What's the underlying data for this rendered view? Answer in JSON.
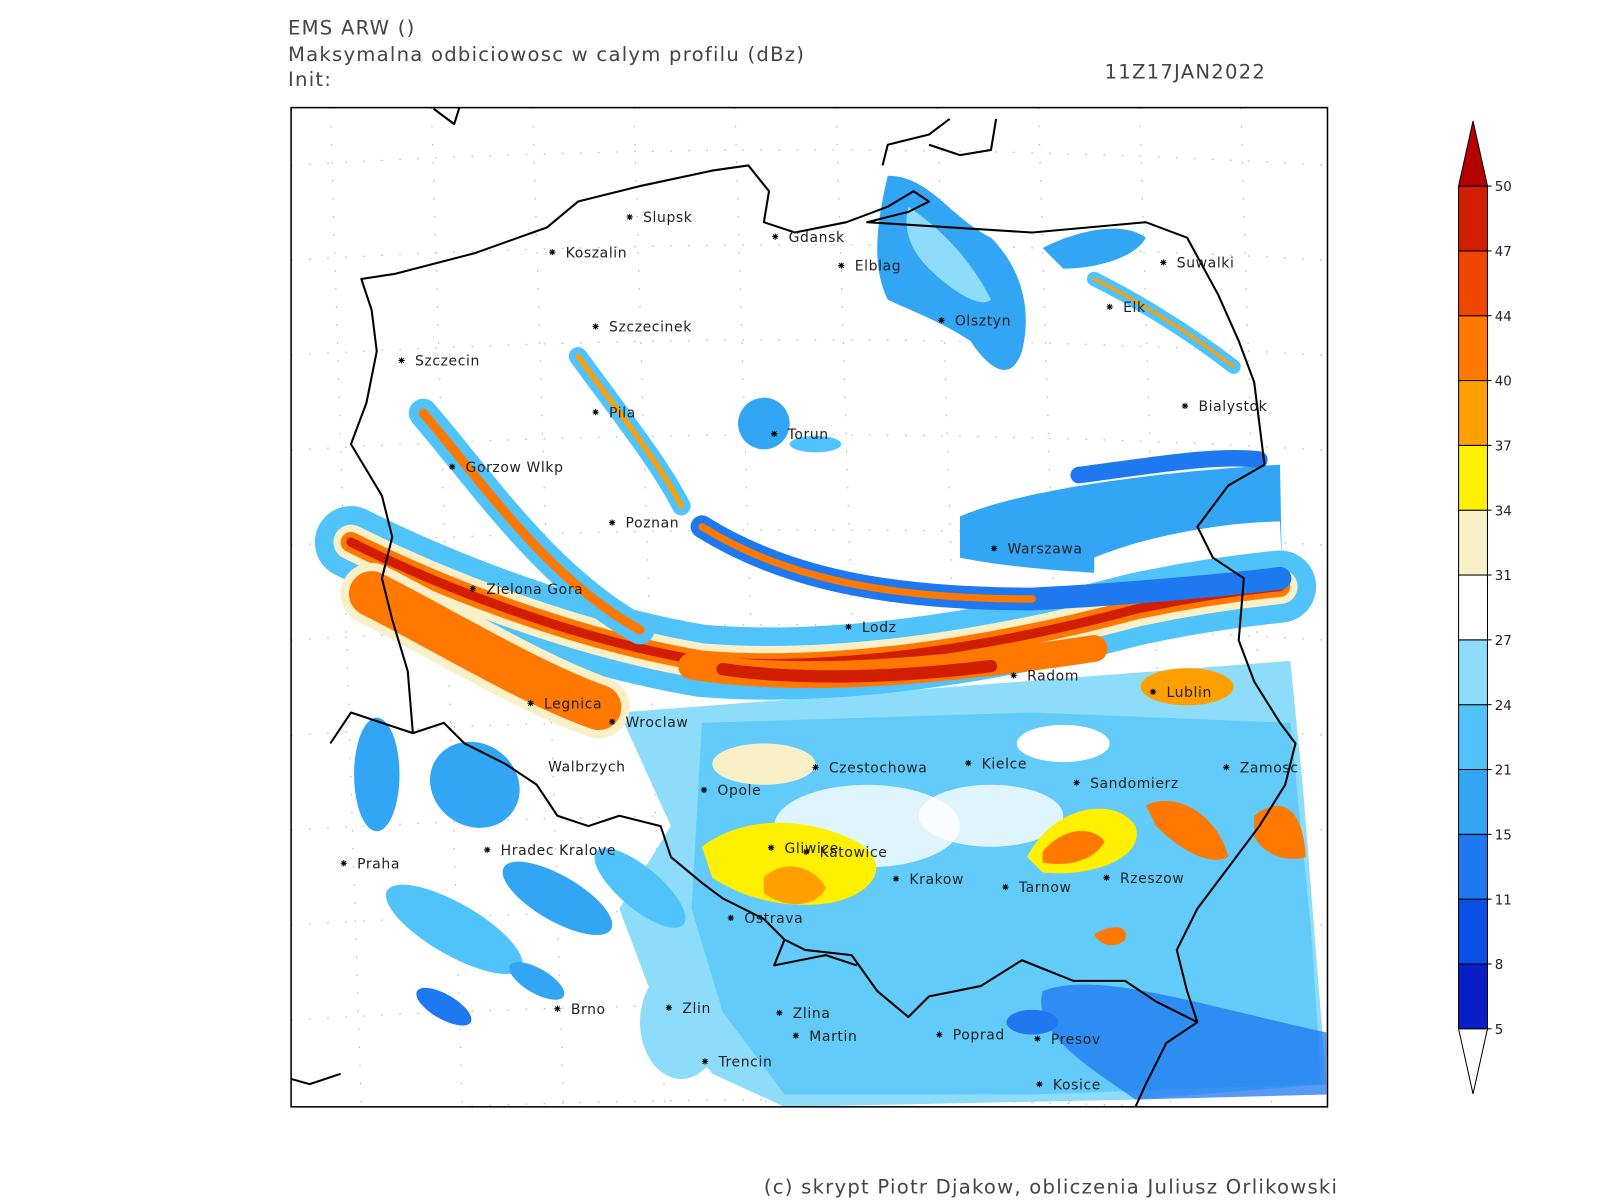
{
  "header": {
    "model": "EMS ARW ()",
    "title": "Maksymalna odbiciowosc w calym profilu (dBz)",
    "init": "Init:",
    "valid": "11Z17JAN2022"
  },
  "map": {
    "cities": [
      "Slupsk",
      "Koszalin",
      "Gdansk",
      "Elblag",
      "Suwalki",
      "Szczecinek",
      "Olsztyn",
      "Elk",
      "Szczecin",
      "Pila",
      "Torun",
      "Bialystok",
      "Gorzow Wlkp",
      "Poznan",
      "Warszawa",
      "Zielona Gora",
      "Lodz",
      "Radom",
      "Lublin",
      "Legnica",
      "Wroclaw",
      "Walbrzych",
      "Czestochowa",
      "Kielce",
      "Zamosc",
      "Sandomierz",
      "Opole",
      "Praha",
      "Hradec Kralove",
      "Gliwice",
      "Katowice",
      "Krakow",
      "Tarnow",
      "Rzeszow",
      "Ostrava",
      "Brno",
      "Zlin",
      "Zlina",
      "Martin",
      "Poprad",
      "Presov",
      "Trencin",
      "Kosice"
    ]
  },
  "legend": {
    "levels": [
      5,
      8,
      11,
      15,
      21,
      24,
      27,
      31,
      34,
      37,
      40,
      44,
      47,
      50
    ],
    "band_colors": [
      "#0a1ec8",
      "#0a50e6",
      "#1e78f0",
      "#32a5f5",
      "#50c3fa",
      "#8cdcfa",
      "#ffffff",
      "#faf0c8",
      "#fff000",
      "#ffa000",
      "#ff7800",
      "#f04600",
      "#d21e00"
    ],
    "under_color": "#ffffff",
    "over_color": "#b40000"
  },
  "footer": {
    "credit": "(c) skrypt Piotr Djakow, obliczenia Juliusz Orlikowski"
  }
}
